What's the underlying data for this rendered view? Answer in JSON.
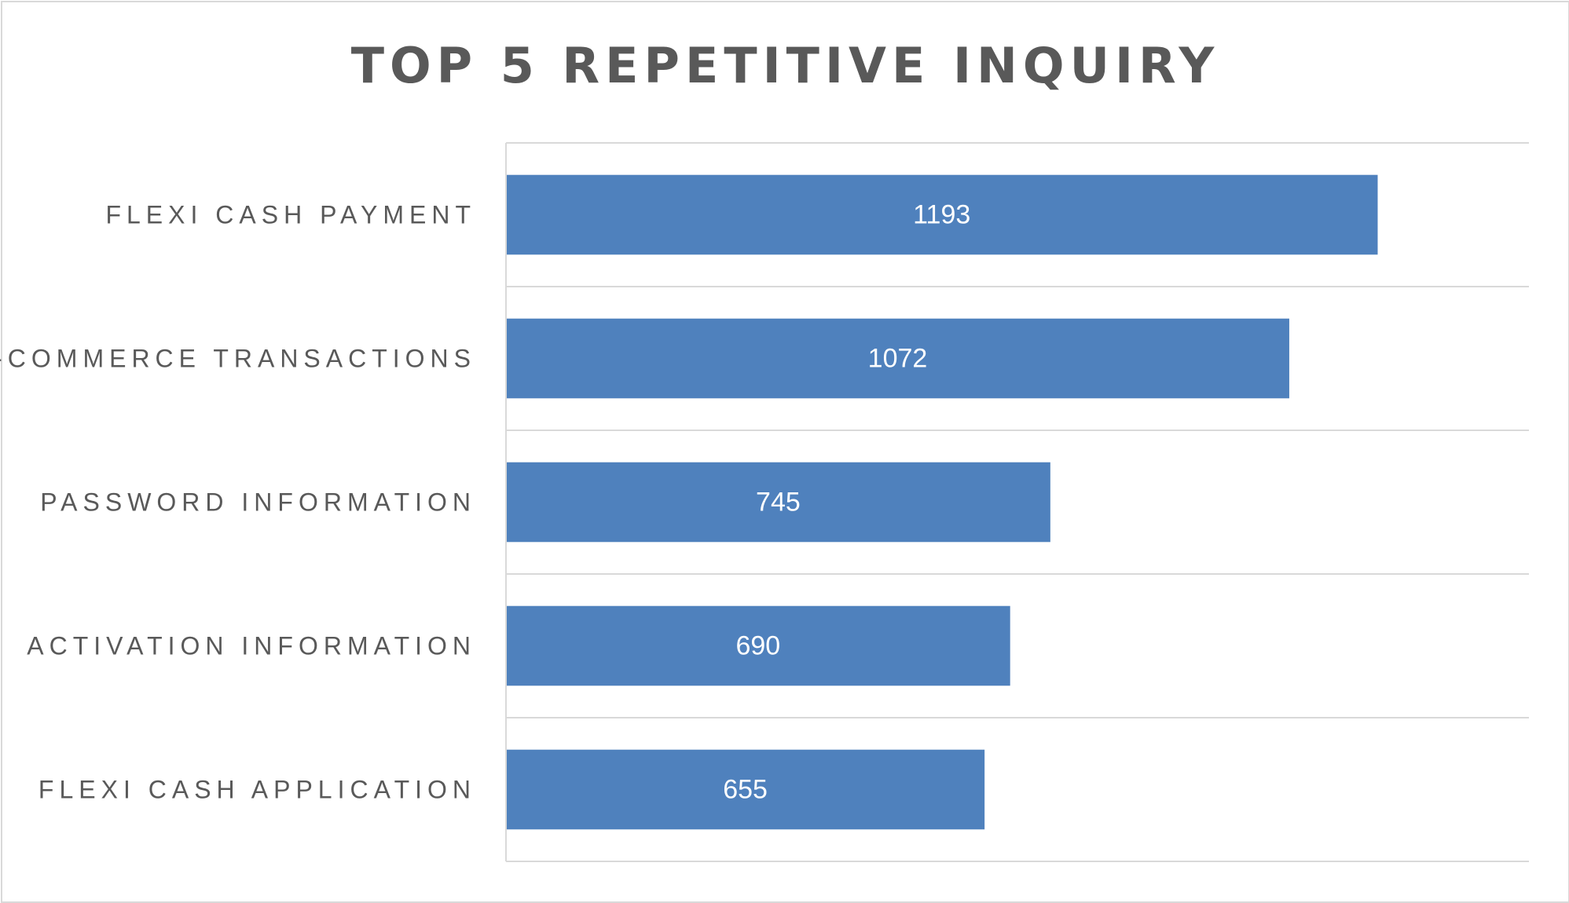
{
  "chart_data": {
    "type": "bar",
    "orientation": "horizontal",
    "title": "TOP 5 REPETITIVE INQUIRY",
    "categories": [
      "FLEXI CASH PAYMENT",
      "E-COMMERCE TRANSACTIONS",
      "PASSWORD INFORMATION",
      "ACTIVATION INFORMATION",
      "FLEXI CASH APPLICATION"
    ],
    "values": [
      1193,
      1072,
      745,
      690,
      655
    ],
    "data_labels": [
      "1193",
      "1072",
      "745",
      "690",
      "655"
    ],
    "xlim": [
      0,
      1400
    ],
    "grid": true,
    "legend": "none",
    "bar_color": "#4f81bd",
    "gridline_color": "#d9d9d9",
    "text_color": "#595959",
    "data_label_color": "#ffffff"
  }
}
